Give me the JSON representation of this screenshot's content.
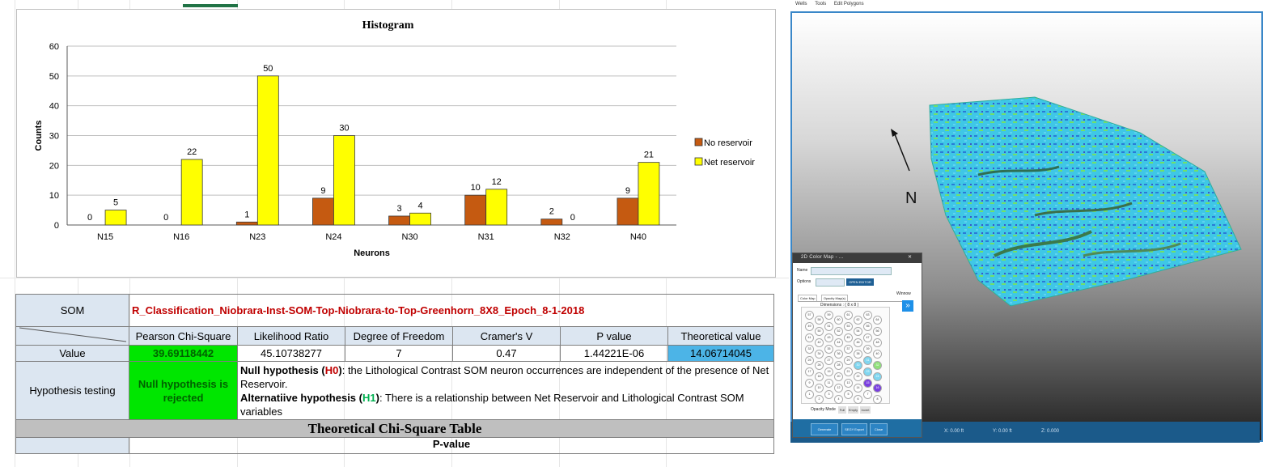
{
  "chart_data": {
    "type": "bar",
    "title": "Histogram",
    "xlabel": "Neurons",
    "ylabel": "Counts",
    "categories": [
      "N15",
      "N16",
      "N23",
      "N24",
      "N30",
      "N31",
      "N32",
      "N40"
    ],
    "series": [
      {
        "name": "No reservoir",
        "values": [
          0,
          0,
          1,
          9,
          3,
          10,
          2,
          9
        ],
        "color": "#c55a11"
      },
      {
        "name": "Net reservoir",
        "values": [
          5,
          22,
          50,
          30,
          4,
          12,
          0,
          21
        ],
        "color": "#ffff00"
      }
    ],
    "ylim": [
      0,
      60
    ],
    "yticks": [
      0,
      10,
      20,
      30,
      40,
      50,
      60
    ],
    "grid": true,
    "legend": "right"
  },
  "table": {
    "som_label": "SOM",
    "som_name": "R_Classification_Niobrara-Inst-SOM-Top-Niobrara-to-Top-Greenhorn_8X8_Epoch_8-1-2018",
    "headers": [
      "Pearson Chi-Square",
      "Likelihood Ratio",
      "Degree of Freedom",
      "Cramer's V",
      "P value",
      "Theoretical value"
    ],
    "value_label": "Value",
    "values": [
      "39.69118442",
      "45.10738277",
      "7",
      "0.47",
      "1.44221E-06",
      "14.06714045"
    ],
    "hyp_label": "Hypothesis testing",
    "hyp_result": "Null hypothesis is rejected",
    "null_title": "Null hypothesis",
    "null_code": "H0",
    "null_text": ": the Lithological Contrast SOM neuron occurrences are independent of the presence of Net Reservoir.",
    "alt_title": "Alternatiive hypothesis",
    "alt_code": "H1",
    "alt_text": ": There is a relationship between Net Reservoir and Lithological Contrast SOM variables",
    "chi_title": "Theoretical Chi-Square Table",
    "pvalue_partial": "P-value"
  },
  "viewer": {
    "menu": [
      "Wells",
      "Tools",
      "Edit Polygons"
    ],
    "north_label": "N",
    "status": [
      "X: 0.00 ft",
      "Y: 0.00 ft",
      "Z: 0.000"
    ]
  },
  "colormap": {
    "title": "2D Color Map - ...",
    "name_label": "Name",
    "options_label": "Options",
    "open_editor": "OPEN EDITOR",
    "tabs": [
      "Color Map",
      "Opacity Map(s)"
    ],
    "dimensions": "Dimensions : ( 8 x 8 )",
    "winnow_label": "Winnow",
    "hex_numbers": [
      "57",
      "59",
      "61",
      "63",
      "58",
      "60",
      "62",
      "64",
      "49",
      "51",
      "53",
      "55",
      "50",
      "52",
      "54",
      "56",
      "41",
      "43",
      "45",
      "47",
      "42",
      "44",
      "46",
      "48",
      "33",
      "35",
      "37",
      "39",
      "34",
      "36",
      "38",
      "40",
      "25",
      "27",
      "29",
      "31",
      "26",
      "28",
      "30",
      "32",
      "17",
      "19",
      "21",
      "23",
      "18",
      "20",
      "22",
      "24",
      "9",
      "11",
      "13",
      "15",
      "10",
      "12",
      "14",
      "16",
      "1",
      "3",
      "5",
      "7",
      "2",
      "4",
      "6",
      "8"
    ],
    "opacity_mode": "Opacity Mode",
    "opacity_options": [
      "Full",
      "Empty",
      "Invert"
    ],
    "footer_buttons": [
      "Generate Geobodies",
      "SEGY Export",
      "Close"
    ]
  }
}
